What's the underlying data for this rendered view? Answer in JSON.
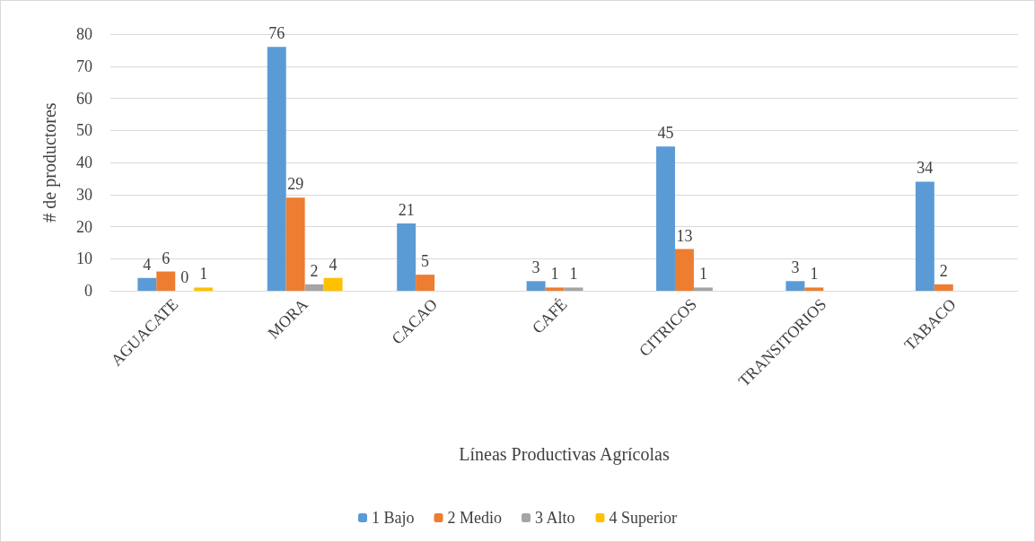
{
  "chart_data": {
    "type": "bar",
    "xlabel": "Líneas Productivas Agrícolas",
    "ylabel": "# de productores",
    "categories": [
      "AGUACATE",
      "MORA",
      "CACAO",
      "CAFÉ",
      "CITRICOS",
      "TRANSITORIOS",
      "TABACO"
    ],
    "series": [
      {
        "name": "1 Bajo",
        "color": "#5b9bd5",
        "values": [
          4,
          76,
          21,
          3,
          45,
          3,
          34
        ]
      },
      {
        "name": "2 Medio",
        "color": "#ed7d31",
        "values": [
          6,
          29,
          5,
          1,
          13,
          1,
          2
        ]
      },
      {
        "name": "3 Alto",
        "color": "#a5a5a5",
        "values": [
          0,
          2,
          null,
          1,
          1,
          null,
          null
        ]
      },
      {
        "name": "4 Superior",
        "color": "#ffc000",
        "values": [
          1,
          4,
          null,
          null,
          null,
          null,
          null
        ]
      }
    ],
    "ylim": [
      0,
      80
    ],
    "yticks": [
      0,
      10,
      20,
      30,
      40,
      50,
      60,
      70,
      80
    ],
    "grid": "y",
    "legend": "bottom",
    "data_labels": true
  }
}
